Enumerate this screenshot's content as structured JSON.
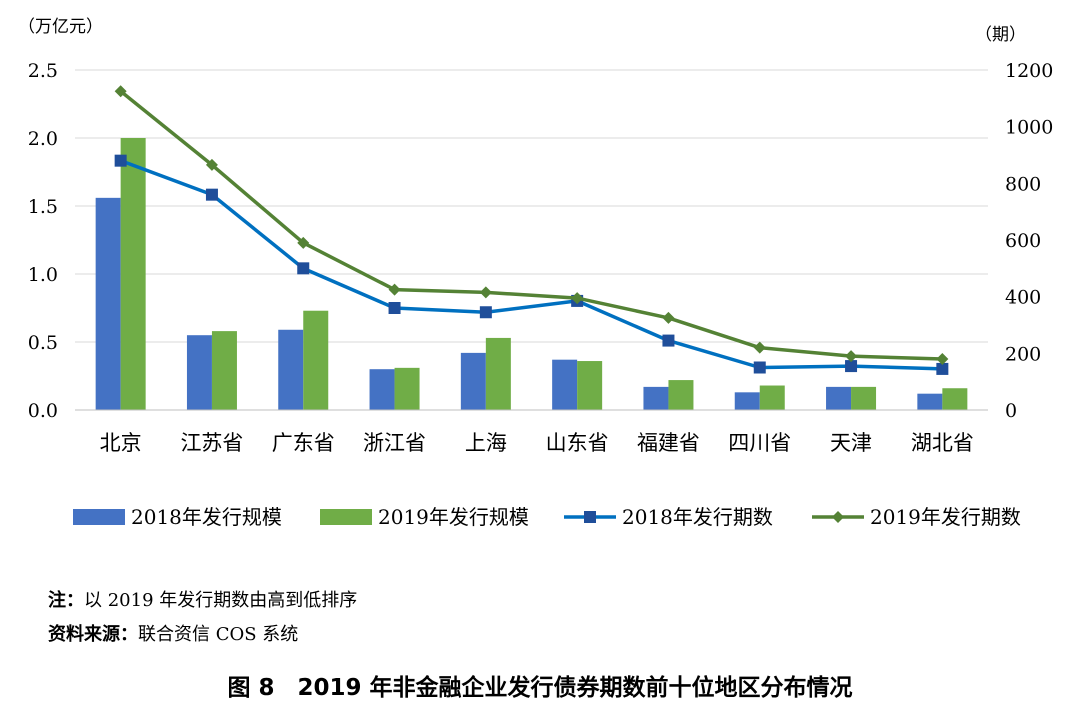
{
  "chart_data": {
    "type": "bar",
    "categories": [
      "北京",
      "江苏省",
      "广东省",
      "浙江省",
      "上海",
      "山东省",
      "福建省",
      "四川省",
      "天津",
      "湖北省"
    ],
    "series": [
      {
        "name": "2018年发行规模",
        "kind": "bar",
        "axis": "left",
        "color": "#4472C4",
        "values": [
          1.56,
          0.55,
          0.59,
          0.3,
          0.42,
          0.37,
          0.17,
          0.13,
          0.17,
          0.12
        ]
      },
      {
        "name": "2019年发行规模",
        "kind": "bar",
        "axis": "left",
        "color": "#70AD47",
        "values": [
          2.0,
          0.58,
          0.73,
          0.31,
          0.53,
          0.36,
          0.22,
          0.18,
          0.17,
          0.16
        ]
      },
      {
        "name": "2018年发行期数",
        "kind": "line",
        "marker": "square",
        "axis": "right",
        "color": "#0070C0",
        "values": [
          880,
          760,
          500,
          360,
          345,
          385,
          245,
          150,
          155,
          145
        ]
      },
      {
        "name": "2019年发行期数",
        "kind": "line",
        "marker": "diamond",
        "axis": "right",
        "color": "#548235",
        "values": [
          1125,
          865,
          590,
          425,
          415,
          395,
          325,
          220,
          190,
          180
        ]
      }
    ],
    "y_left": {
      "unit": "（万亿元）",
      "ticks": [
        "0.0",
        "0.5",
        "1.0",
        "1.5",
        "2.0",
        "2.5"
      ],
      "range": [
        0,
        2.5
      ]
    },
    "y_right": {
      "unit": "（期）",
      "ticks": [
        "0",
        "200",
        "400",
        "600",
        "800",
        "1000",
        "1200"
      ],
      "range": [
        0,
        1200
      ]
    },
    "legend_position": "bottom",
    "grid": true
  },
  "notes": {
    "note_label": "注：",
    "note_text": "以 2019 年发行期数由高到低排序",
    "source_label": "资料来源：",
    "source_text": "联合资信 COS 系统"
  },
  "caption": "图 8　2019 年非金融企业发行债券期数前十位地区分布情况"
}
